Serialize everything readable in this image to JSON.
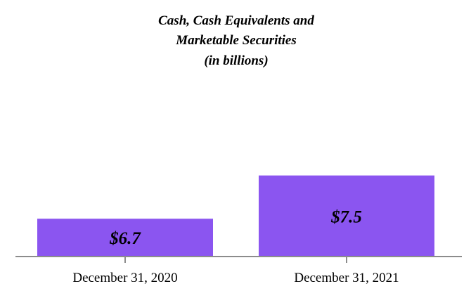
{
  "chart_data": {
    "type": "bar",
    "title_lines": [
      "Cash, Cash Equivalents and",
      "Marketable Securities",
      "(in billions)"
    ],
    "categories": [
      "December 31, 2020",
      "December 31, 2021"
    ],
    "values": [
      6.7,
      7.5
    ],
    "data_labels": [
      "$6.7",
      "$7.5"
    ],
    "xlabel": "",
    "ylabel": "",
    "grid": false,
    "legend": "none",
    "colors": {
      "bar": "#8b55f0",
      "axis": "#8c8c8c",
      "text": "#000000"
    }
  }
}
